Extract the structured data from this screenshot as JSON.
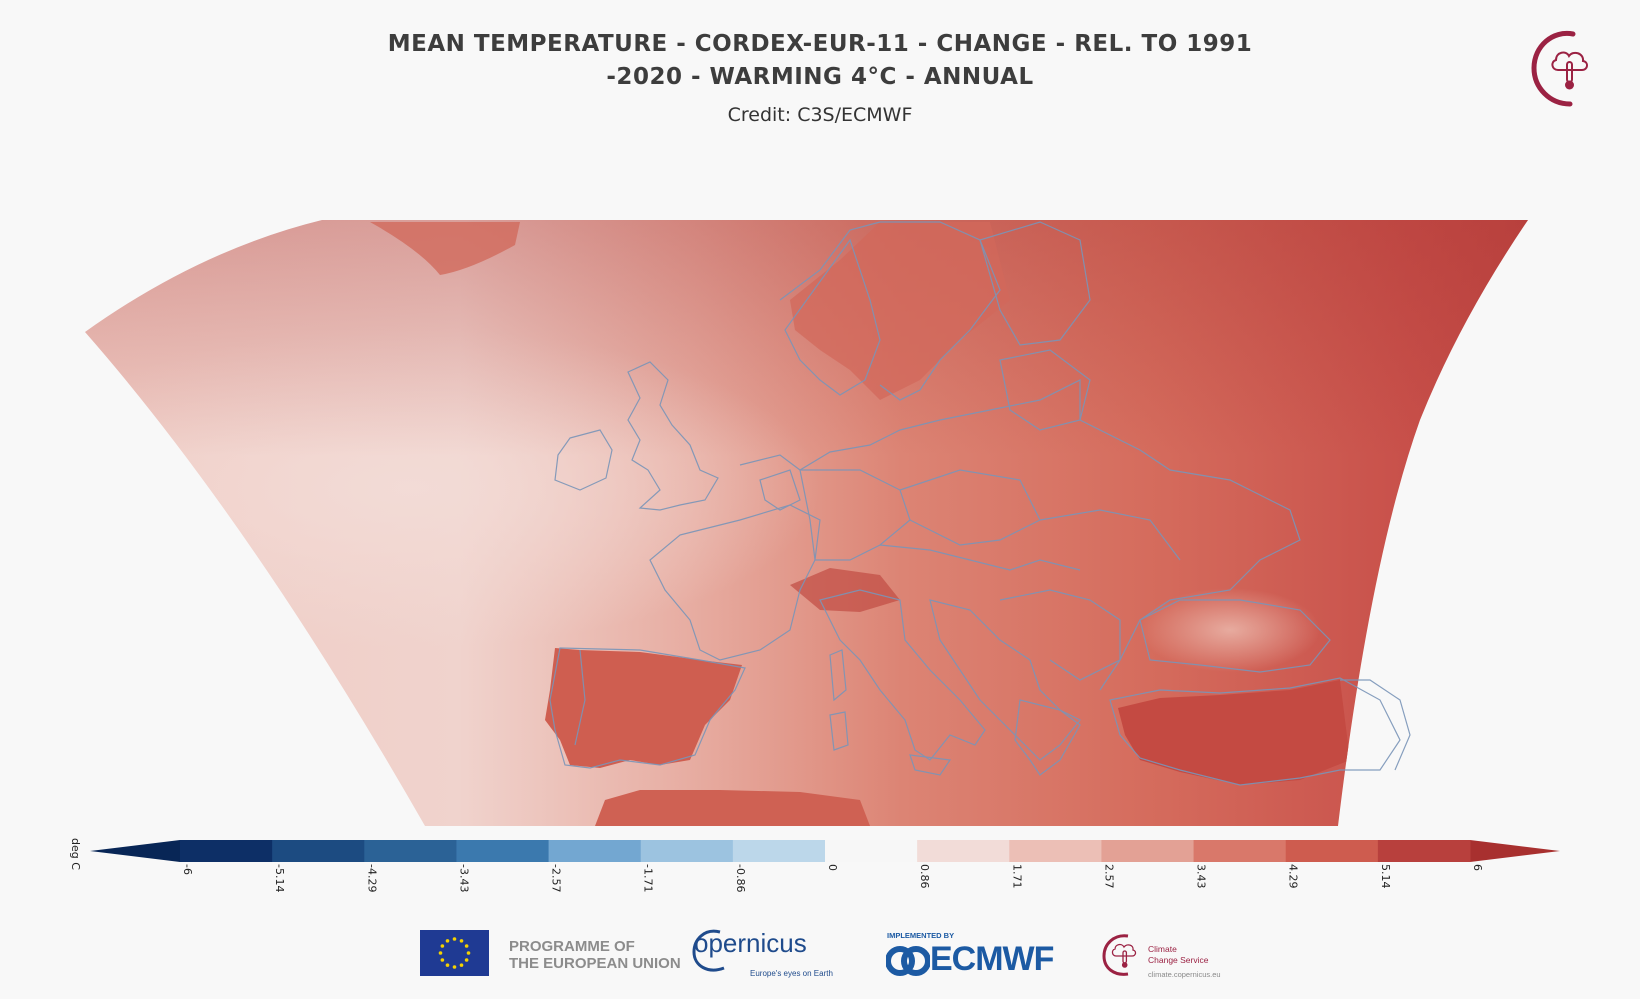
{
  "title_line1": "MEAN TEMPERATURE - CORDEX-EUR-11 - CHANGE - REL. TO 1991",
  "title_line2": "-2020 - WARMING 4°C - ANNUAL",
  "credit": "Credit: C3S/ECMWF",
  "colorbar": {
    "unit": "deg C",
    "ticks": [
      "-6",
      "-5.14",
      "-4.29",
      "-3.43",
      "-2.57",
      "-1.71",
      "-0.86",
      "0",
      "0.86",
      "1.71",
      "2.57",
      "3.43",
      "4.29",
      "5.14",
      "6"
    ],
    "colors": [
      "#0d2f66",
      "#1c4b81",
      "#2b6296",
      "#3b79ae",
      "#73a7d1",
      "#9cc3e0",
      "#bcd7ea",
      "#f7f7f7",
      "#f2dcd8",
      "#ecbfb6",
      "#e3a195",
      "#d9786a",
      "#ce5c4f",
      "#b8403d"
    ],
    "extend_low_color": "#082656",
    "extend_high_color": "#a8302f"
  },
  "footer": {
    "eu_programme": [
      "PROGRAMME OF",
      "THE EUROPEAN UNION"
    ],
    "copernicus": "opernicus",
    "copernicus_sub": "Europe's eyes on Earth",
    "implemented_by": "IMPLEMENTED BY",
    "ecmwf": "ECMWF",
    "c3s_name": [
      "Climate",
      "Change Service"
    ],
    "c3s_url": "climate.copernicus.eu"
  },
  "colors": {
    "brand_c3s": "#9b2243",
    "brand_ecmwf": "#1c5aa3",
    "eu_blue": "#1f3a93",
    "eu_star": "#f5d200",
    "borders": "#7a95b8"
  },
  "icons": [
    "c3s-logo-icon",
    "eu-flag-icon",
    "copernicus-logo-icon",
    "ecmwf-logo-icon"
  ]
}
